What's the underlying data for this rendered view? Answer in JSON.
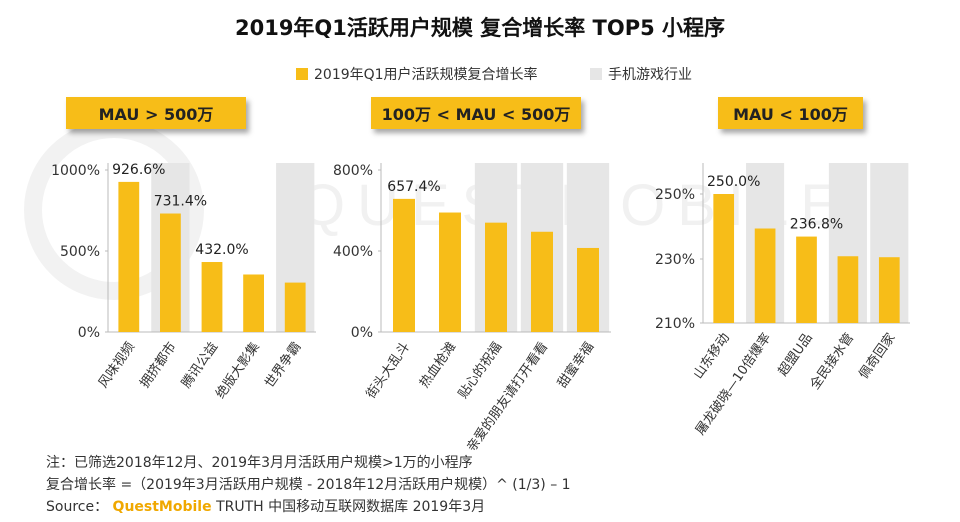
{
  "title": "2019年Q1活跃用户规模 复合增长率 TOP5 小程序",
  "legend": [
    {
      "label": "2019年Q1用户活跃规模复合增长率",
      "color": "#f7bd18"
    },
    {
      "label": "手机游戏行业",
      "color": "#e6e6e6"
    }
  ],
  "colors": {
    "bar": "#f7bd18",
    "highlight": "#e6e6e6",
    "axis": "#bbbbbb",
    "badge": "#f7bd18"
  },
  "watermark": "QUESTMOBILE",
  "chart_data": [
    {
      "type": "bar",
      "badge": "MAU > 500万",
      "categories": [
        "风味视频",
        "拥挤都市",
        "腾讯公益",
        "绝版大影集",
        "世界争霸"
      ],
      "values": [
        926.6,
        731.4,
        432.0,
        355,
        305
      ],
      "data_labels": [
        "926.6%",
        "731.4%",
        "432.0%",
        "",
        ""
      ],
      "highlighted": [
        false,
        true,
        false,
        false,
        true
      ],
      "yticks": [
        "1000%",
        "500%",
        "0%"
      ],
      "ylim": [
        0,
        1000
      ]
    },
    {
      "type": "bar",
      "badge": "100万 < MAU < 500万",
      "categories": [
        "街头大乱斗",
        "热血枪滩",
        "贴心的祝福",
        "亲爱的朋友请打开看看",
        "甜蜜幸福"
      ],
      "values": [
        657.4,
        590,
        540,
        495,
        415
      ],
      "data_labels": [
        "657.4%",
        "",
        "",
        "",
        ""
      ],
      "highlighted": [
        false,
        false,
        true,
        true,
        true
      ],
      "yticks": [
        "800%",
        "400%",
        "0%"
      ],
      "ylim": [
        0,
        800
      ]
    },
    {
      "type": "bar",
      "badge": "MAU < 100万",
      "categories": [
        "山东移动",
        "屠龙破晓—10倍爆率",
        "超盟U品",
        "全民接水管",
        "佩奇回家"
      ],
      "values": [
        250.0,
        239.3,
        236.8,
        230.7,
        230.4
      ],
      "data_labels": [
        "250.0%",
        "",
        "236.8%",
        "",
        ""
      ],
      "highlighted": [
        false,
        true,
        false,
        true,
        true
      ],
      "yticks": [
        "250%",
        "230%",
        "210%"
      ],
      "ylim": [
        210,
        250
      ]
    }
  ],
  "footer": {
    "line1": "注：已筛选2018年12月、2019年3月月活跃用户规模>1万的小程序",
    "line2": "复合增长率 =（2019年3月活跃用户规模 - 2018年12月活跃用户规模）^ (1/3) – 1",
    "source_label": "Source：",
    "source_brand": "QuestMobile",
    "source_rest": "TRUTH 中国移动互联网数据库 2019年3月"
  }
}
